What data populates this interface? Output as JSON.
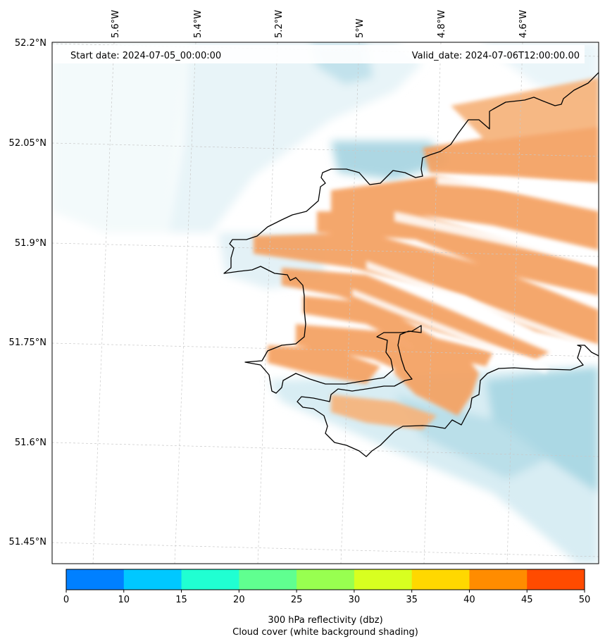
{
  "header": {
    "start_date": "Start date: 2024-07-05_00:00:00",
    "valid_date": "Valid_date: 2024-07-06T12:00:00.00"
  },
  "axes": {
    "lat_labels": [
      "52.2°N",
      "52.05°N",
      "51.9°N",
      "51.75°N",
      "51.6°N",
      "51.45°N"
    ],
    "lon_labels": [
      "5.6°W",
      "5.4°W",
      "5.2°W",
      "5°W",
      "4.8°W",
      "4.6°W"
    ]
  },
  "colorbar": {
    "ticks": [
      "0",
      "10",
      "15",
      "20",
      "25",
      "30",
      "35",
      "40",
      "45",
      "50"
    ],
    "colors": [
      "#0080ff",
      "#00c8ff",
      "#20ffd2",
      "#60ff90",
      "#98ff50",
      "#d8ff20",
      "#ffd800",
      "#ff8c00",
      "#ff4b00"
    ],
    "label_line1": "300 hPa reflectivity (dbz)",
    "label_line2": "Cloud cover (white background shading)"
  },
  "map_colors": {
    "reflectivity": "#f4a060",
    "cloud": "#a8d8e4",
    "coast": "#000000"
  }
}
